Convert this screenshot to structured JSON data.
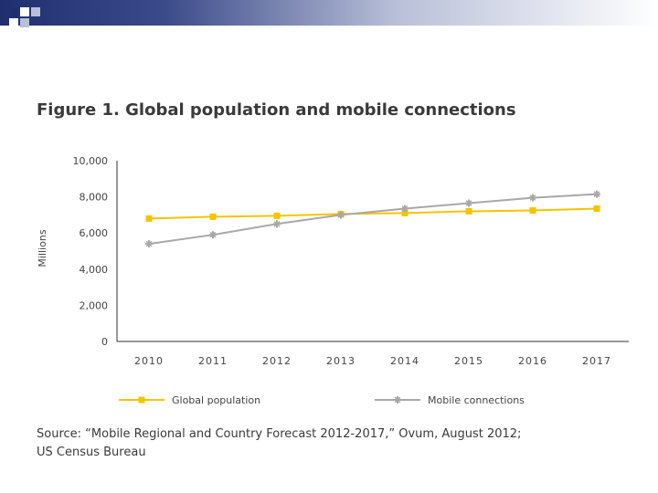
{
  "chart_data": {
    "type": "line",
    "title": "Figure 1. Global population and mobile connections",
    "ylabel": "Millions",
    "xlabel": "",
    "ylim": [
      0,
      10000
    ],
    "yticks": [
      0,
      2000,
      4000,
      6000,
      8000,
      10000
    ],
    "ytick_labels": [
      "0",
      "2,000",
      "4,000",
      "6,000",
      "8,000",
      "10,000"
    ],
    "categories": [
      "2010",
      "2011",
      "2012",
      "2013",
      "2014",
      "2015",
      "2016",
      "2017"
    ],
    "series": [
      {
        "name": "Global population",
        "color": "#f5c400",
        "marker": "square",
        "values": [
          6800,
          6900,
          6950,
          7050,
          7100,
          7200,
          7250,
          7350
        ]
      },
      {
        "name": "Mobile connections",
        "color": "#a8a8a8",
        "marker": "star",
        "values": [
          5400,
          5900,
          6500,
          7000,
          7350,
          7650,
          7950,
          8150
        ]
      }
    ],
    "grid": false,
    "legend_position": "bottom"
  },
  "source": {
    "line1": "Source: “Mobile Regional and Country Forecast 2012-2017,” Ovum, August 2012;",
    "line2": "US Census Bureau"
  }
}
